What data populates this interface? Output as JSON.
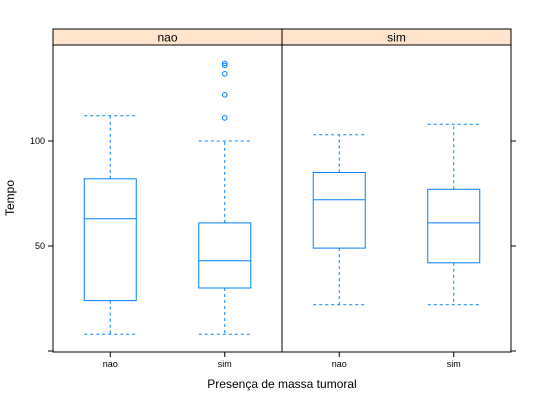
{
  "chart_data": {
    "type": "box",
    "xlabel": "Presença de massa tumoral",
    "ylabel": "Tempo",
    "ylim": [
      0,
      150
    ],
    "yticks": [
      50,
      100
    ],
    "panels": [
      {
        "strip": "nao",
        "groups": [
          {
            "category": "nao",
            "whisker_low": 8,
            "q1": 24,
            "median": 63,
            "q3": 82,
            "whisker_high": 112,
            "outliers": []
          },
          {
            "category": "sim",
            "whisker_low": 8,
            "q1": 30,
            "median": 43,
            "q3": 61,
            "whisker_high": 100,
            "outliers": [
              111,
              122,
              132,
              136,
              137
            ]
          }
        ]
      },
      {
        "strip": "sim",
        "groups": [
          {
            "category": "nao",
            "whisker_low": 22,
            "q1": 49,
            "median": 72,
            "q3": 85,
            "whisker_high": 103,
            "outliers": []
          },
          {
            "category": "sim",
            "whisker_low": 22,
            "q1": 42,
            "median": 61,
            "q3": 77,
            "whisker_high": 108,
            "outliers": []
          }
        ]
      }
    ],
    "colors": {
      "box": "#0080ff",
      "strip": "#ffe5cc"
    }
  }
}
